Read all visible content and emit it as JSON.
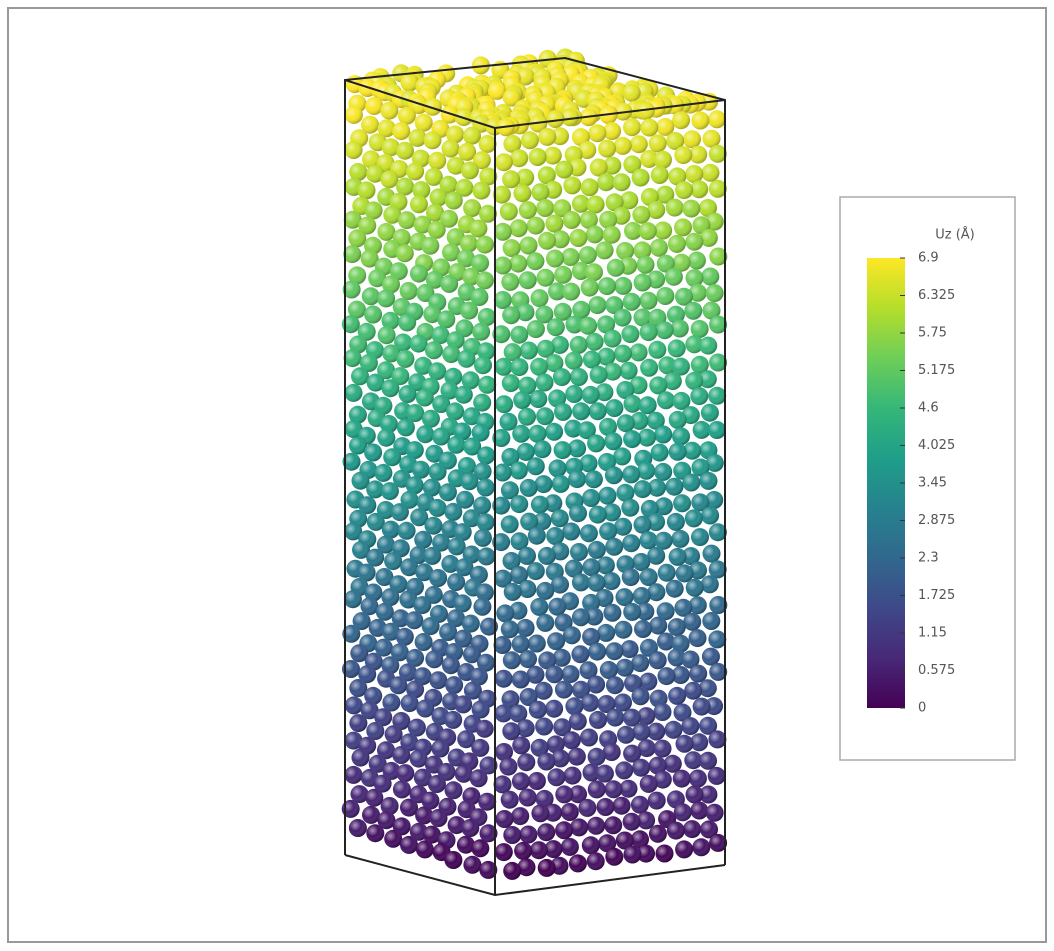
{
  "chart_data": {
    "type": "colorbar",
    "label": "Uz (Å)",
    "zlim": [
      0,
      6.9
    ],
    "zticks": [
      0,
      0.575,
      1.15,
      1.725,
      2.3,
      2.875,
      3.45,
      4.025,
      4.6,
      5.175,
      5.75,
      6.325,
      6.9
    ],
    "colormap": [
      "#440154",
      "#482878",
      "#3e4989",
      "#31688e",
      "#26828e",
      "#1f9e89",
      "#35b779",
      "#6ece58",
      "#b5de2b",
      "#fde725"
    ]
  }
}
